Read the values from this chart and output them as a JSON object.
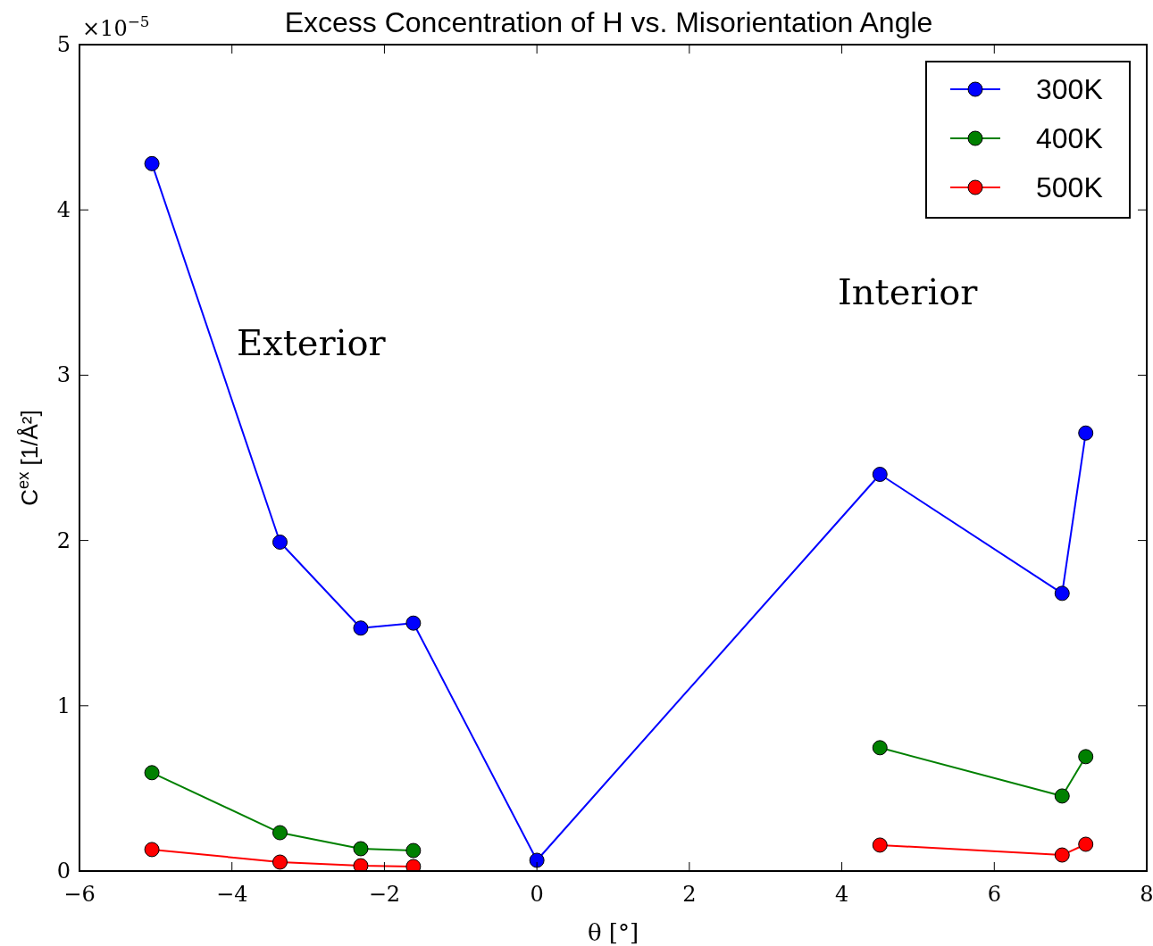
{
  "chart_data": {
    "type": "line",
    "title": "Excess Concentration of H vs. Misorientation Angle",
    "xlabel": "θ [°]",
    "ylabel": "C$^{ex}$ [1/Å²]",
    "x": [
      -5.05,
      -3.37,
      -2.31,
      -1.62,
      0,
      4.5,
      6.89,
      7.2
    ],
    "series": [
      {
        "name": "300K",
        "color": "#0000ff",
        "values": [
          4.28,
          1.99,
          1.47,
          1.5,
          0.065,
          2.4,
          1.68,
          2.65
        ]
      },
      {
        "name": "400K",
        "color": "#008000",
        "values": [
          0.595,
          0.232,
          0.135,
          0.124,
          null,
          0.746,
          0.454,
          0.692
        ]
      },
      {
        "name": "500K",
        "color": "#ff0000",
        "values": [
          0.13,
          0.054,
          0.032,
          0.027,
          null,
          0.157,
          0.097,
          0.162
        ]
      }
    ],
    "xlim": [
      -6,
      8
    ],
    "xticks": [
      {
        "value": -6,
        "label": "−6"
      },
      {
        "value": -4,
        "label": "−4"
      },
      {
        "value": -2,
        "label": "−2"
      },
      0,
      2,
      4,
      6,
      8
    ],
    "ylim": [
      0,
      5
    ],
    "yticks": [
      0,
      1,
      2,
      3,
      4,
      5
    ],
    "annotations": [
      "×10$^{−5}$",
      "Exterior",
      "Interior"
    ],
    "legend": "top right",
    "marker": "circle",
    "line_style": "solid",
    "grid": false
  }
}
